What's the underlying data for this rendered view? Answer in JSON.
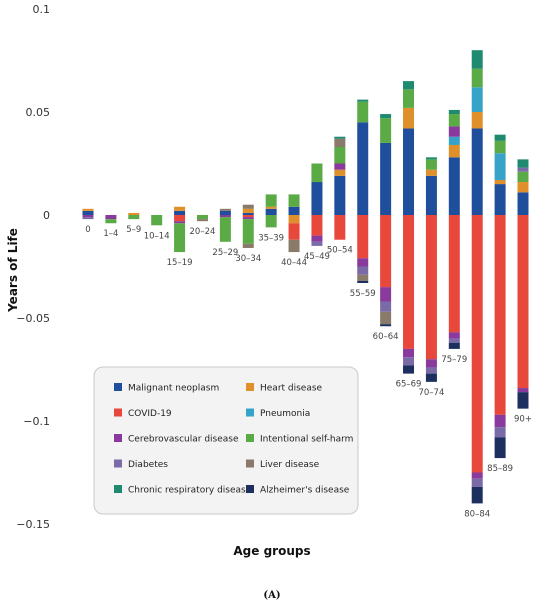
{
  "chart_data": {
    "type": "bar",
    "stacked": true,
    "title": "",
    "xlabel": "Age groups",
    "ylabel": "Years of Life",
    "caption": "(A)",
    "ylim": [
      -0.15,
      0.1
    ],
    "yticks": [
      0.1,
      0.05,
      0,
      -0.05,
      -0.1,
      -0.15
    ],
    "ytick_labels": [
      "0.1",
      "0.05",
      "0",
      "−0.05",
      "−0.1",
      "−0.15"
    ],
    "grid": false,
    "legend_position": "bottom-left",
    "categories": [
      "0",
      "1–4",
      "5–9",
      "10–14",
      "15–19",
      "20–24",
      "25–29",
      "30–34",
      "35–39",
      "40–44",
      "45–49",
      "50–54",
      "55–59",
      "60–64",
      "65–69",
      "70–74",
      "75–79",
      "80–84",
      "85–89",
      "90+"
    ],
    "series": [
      {
        "name": "Malignant neoplasm",
        "color": "#1f4e9c",
        "pos": [
          0.002,
          0,
          0,
          0,
          0.002,
          0,
          0.002,
          0.001,
          0.003,
          0.004,
          0.016,
          0.019,
          0.045,
          0.035,
          0.042,
          0.019,
          0.028,
          0.042,
          0.015,
          0.011
        ],
        "neg": [
          0,
          0,
          0,
          0,
          0,
          0,
          0,
          0,
          0,
          0,
          0,
          0,
          0,
          0,
          0,
          0,
          0,
          0,
          0,
          0
        ]
      },
      {
        "name": "Heart disease",
        "color": "#e0902a",
        "pos": [
          0.001,
          0,
          0.001,
          0,
          0.002,
          0,
          0,
          0.002,
          0.001,
          0,
          0,
          0.003,
          0,
          0,
          0.01,
          0.003,
          0.006,
          0.008,
          0.002,
          0.005
        ],
        "neg": [
          0,
          0,
          0,
          0,
          0,
          0,
          0,
          0,
          0,
          -0.004,
          0,
          0,
          0,
          0,
          0,
          0,
          0,
          0,
          0,
          0
        ]
      },
      {
        "name": "COVID-19",
        "color": "#e8473c",
        "pos": [
          0,
          0,
          0,
          0,
          0,
          0,
          0,
          0,
          0,
          0,
          0,
          0,
          0,
          0,
          0,
          0,
          0,
          0,
          0,
          0
        ],
        "neg": [
          0,
          0,
          0,
          0,
          -0.003,
          0,
          0,
          -0.001,
          0,
          -0.008,
          -0.01,
          -0.012,
          -0.021,
          -0.035,
          -0.065,
          -0.07,
          -0.057,
          -0.125,
          -0.097,
          -0.084
        ]
      },
      {
        "name": "Pneumonia",
        "color": "#38a3c8",
        "pos": [
          0,
          0,
          0,
          0,
          0,
          0,
          0,
          0,
          0,
          0,
          0,
          0,
          0,
          0,
          0,
          0,
          0.004,
          0.012,
          0.013,
          0
        ],
        "neg": [
          0,
          0,
          0,
          0,
          0,
          0,
          0,
          0,
          0,
          0,
          0,
          0,
          0,
          0,
          0,
          0,
          0,
          0,
          0,
          0
        ]
      },
      {
        "name": "Cerebrovascular disease",
        "color": "#8a3a9c",
        "pos": [
          0,
          0,
          0,
          0,
          0,
          0,
          0,
          0,
          0,
          0,
          0,
          0.003,
          0,
          0,
          0,
          0,
          0.005,
          0,
          0,
          0
        ],
        "neg": [
          -0.001,
          -0.002,
          0,
          0,
          -0.001,
          0,
          -0.001,
          -0.001,
          0,
          0,
          -0.003,
          0,
          -0.004,
          -0.007,
          -0.004,
          -0.004,
          -0.003,
          -0.003,
          -0.006,
          -0.002
        ]
      },
      {
        "name": "Intentional self-harm",
        "color": "#5aaa46",
        "pos": [
          0,
          0,
          0,
          0,
          0,
          0,
          0,
          0,
          0.006,
          0.006,
          0.009,
          0.008,
          0.01,
          0.012,
          0.009,
          0.005,
          0.006,
          0.009,
          0.006,
          0.005
        ],
        "neg": [
          0,
          -0.002,
          -0.002,
          -0.005,
          -0.014,
          -0.002,
          -0.012,
          -0.012,
          -0.006,
          0,
          0,
          0,
          0,
          0,
          0,
          0,
          0,
          0,
          0,
          0
        ]
      },
      {
        "name": "Diabetes",
        "color": "#7b6aa8",
        "pos": [
          0,
          0,
          0,
          0,
          0,
          0,
          0,
          0,
          0,
          0,
          0,
          0,
          0,
          0,
          0,
          0,
          0,
          0,
          0,
          0.002
        ],
        "neg": [
          -0.001,
          0,
          0,
          0,
          0,
          0,
          0,
          0,
          0,
          0,
          -0.002,
          0,
          -0.004,
          -0.005,
          -0.004,
          -0.003,
          -0.002,
          -0.004,
          -0.005,
          0
        ]
      },
      {
        "name": "Liver disease",
        "color": "#8a7a6a",
        "pos": [
          0,
          0,
          0,
          0,
          0,
          0,
          0.001,
          0.002,
          0,
          0,
          0,
          0.004,
          0,
          0,
          0,
          0,
          0,
          0,
          0,
          0
        ],
        "neg": [
          0,
          0,
          0,
          0,
          0,
          -0.001,
          0,
          -0.002,
          0,
          -0.006,
          0,
          0,
          -0.003,
          -0.006,
          0,
          0,
          0,
          0,
          0,
          0
        ]
      },
      {
        "name": "Chronic respiratory disease",
        "color": "#1e8a70",
        "pos": [
          0,
          0,
          0,
          0,
          0,
          0,
          0,
          0,
          0,
          0,
          0,
          0.001,
          0.001,
          0.002,
          0.004,
          0.001,
          0.002,
          0.009,
          0.003,
          0.004
        ],
        "neg": [
          0,
          0,
          0,
          0,
          0,
          0,
          0,
          0,
          0,
          0,
          0,
          0,
          0,
          0,
          0,
          0,
          0,
          0,
          0,
          0
        ]
      },
      {
        "name": "Alzheimer's disease",
        "color": "#1c2f5e",
        "pos": [
          0,
          0,
          0,
          0,
          0,
          0,
          0,
          0,
          0,
          0,
          0,
          0,
          0,
          0,
          0,
          0,
          0,
          0,
          0,
          0
        ],
        "neg": [
          0,
          0,
          0,
          0,
          0,
          0,
          0,
          0,
          0,
          0,
          0,
          0,
          -0.001,
          -0.001,
          -0.004,
          -0.004,
          -0.003,
          -0.008,
          -0.01,
          -0.008
        ]
      }
    ],
    "legend_order": [
      "Malignant neoplasm",
      "Heart disease",
      "COVID-19",
      "Pneumonia",
      "Cerebrovascular disease",
      "Intentional self-harm",
      "Diabetes",
      "Liver disease",
      "Chronic respiratory disease",
      "Alzheimer's disease"
    ]
  }
}
